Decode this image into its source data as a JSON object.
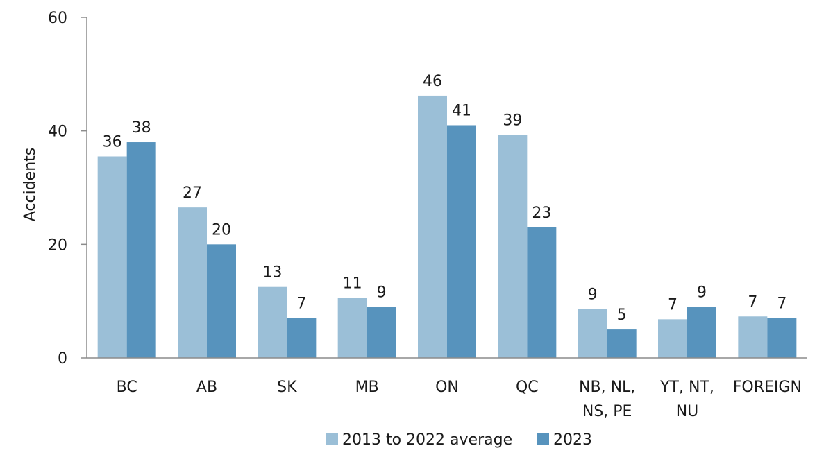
{
  "chart_data": {
    "type": "bar",
    "title": "",
    "xlabel": "",
    "ylabel": "Accidents",
    "ylim": [
      0,
      60
    ],
    "yticks": [
      0,
      20,
      40,
      60
    ],
    "grid": false,
    "legend_position": "bottom",
    "categories": [
      [
        "BC"
      ],
      [
        "AB"
      ],
      [
        "SK"
      ],
      [
        "MB"
      ],
      [
        "ON"
      ],
      [
        "QC"
      ],
      [
        "NB, NL,",
        "NS, PE"
      ],
      [
        "YT, NT,",
        "NU"
      ],
      [
        "FOREIGN"
      ]
    ],
    "series": [
      {
        "name": "2013 to 2022 average",
        "color": "#9bbfd7",
        "values": [
          35.5,
          26.5,
          12.5,
          10.6,
          46.2,
          39.3,
          8.6,
          6.8,
          7.3
        ],
        "labels": [
          "36",
          "27",
          "13",
          "11",
          "46",
          "39",
          "9",
          "7",
          "7"
        ]
      },
      {
        "name": "2023",
        "color": "#5793bd",
        "values": [
          38,
          20,
          7,
          9,
          41,
          23,
          5,
          9,
          7
        ],
        "labels": [
          "38",
          "20",
          "7",
          "9",
          "41",
          "23",
          "5",
          "9",
          "7"
        ]
      }
    ]
  }
}
